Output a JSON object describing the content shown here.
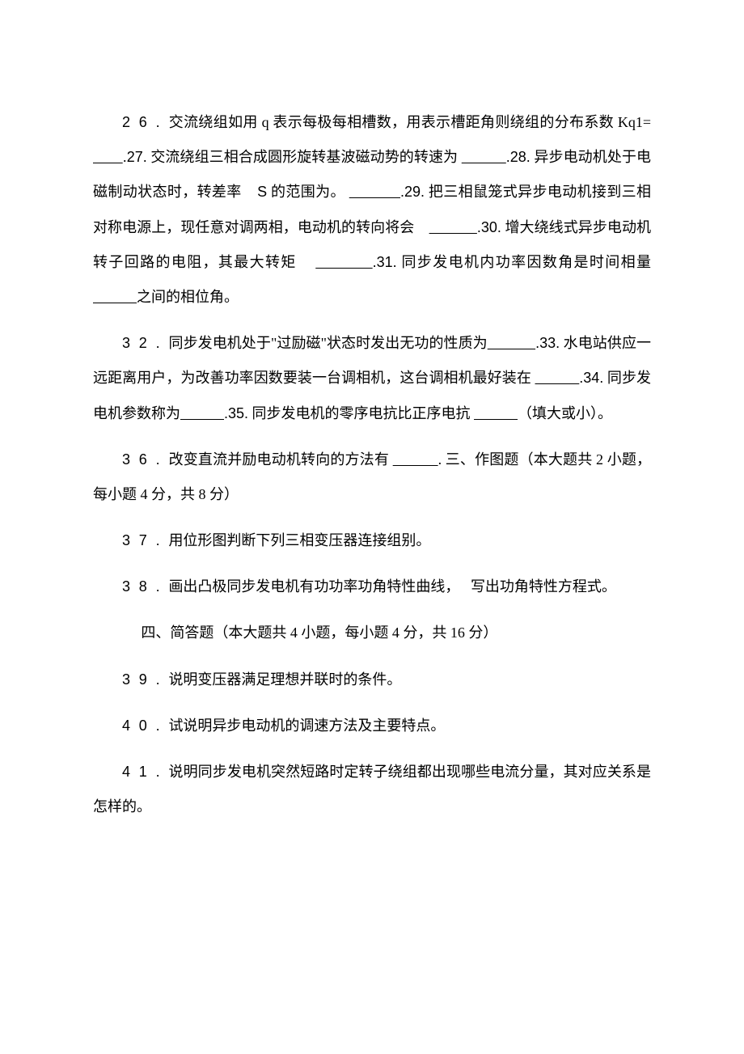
{
  "text_color": "#000000",
  "background_color": "#ffffff",
  "base_font_size_pt": 14,
  "line_height": 2.4,
  "paragraphs": {
    "p1": {
      "q26_num": "26.",
      "q26_text_a": "交流绕组如用 q 表示每极每相槽数，用表示槽距角则绕组的分布系数 Kq1=",
      "q27_num": ".27.",
      "q27_text": " 交流绕组三相合成圆形旋转基波磁动势的转速为 ",
      "q28_num": ".28.",
      "q28_text_a": " 异步电动机处于电磁制动状态时，转差率",
      "q28_s": "S",
      "q28_text_b": "的范围为。 ",
      "q29_num": ".29.",
      "q29_text": " 把三相鼠笼式异步电动机接到三相对称电源上，现任意对调两相，电动机的转向将会",
      "q30_num": ".30.",
      "q30_text": " 增大绕线式异步电动机转子回路的电阻，其最大转矩",
      "q31_num": ".31.",
      "q31_text": " 同步发电机内功率因数角是时间相量 ",
      "q31_end": "之间的相位角。"
    },
    "p2": {
      "q32_num": "32.",
      "q32_text": "同步发电机处于\"过励磁\"状态时发出无功的性质为",
      "q33_num": ".33.",
      "q33_text": " 水电站供应一远距离用户，为改善功率因数要装一台调相机，这台调相机最好装在 ",
      "q34_num": ".34.",
      "q34_text": " 同步发电机参数称为",
      "q35_num": ".35.",
      "q35_text": " 同步发电机的零序电抗比正序电抗 ",
      "q35_end": "（填大或小）。"
    },
    "p3": {
      "q36_num": "36.",
      "q36_text": "改变直流并励电动机转向的方法有 ",
      "q36_end": ". 三、作图题（本大题共 2 小题，每小题 4 分，共 8 分）"
    },
    "p4": {
      "q37_num": "37.",
      "q37_text": "用位形图判断下列三相变压器连接组别。"
    },
    "p5": {
      "q38_num": "38.",
      "q38_text_a": "画出凸极同步发电机有功功率功角特性曲线，",
      "q38_text_b": "写出功角特性方程式。"
    },
    "p6": {
      "section4": "四、简答题（本大题共 4 小题，每小题 4 分，共 16 分）"
    },
    "p7": {
      "q39_num": "39.",
      "q39_text": "说明变压器满足理想并联时的条件。"
    },
    "p8": {
      "q40_num": "40.",
      "q40_text": "试说明异步电动机的调速方法及主要特点。"
    },
    "p9": {
      "q41_num": "41.",
      "q41_text": "说明同步发电机突然短路时定转子绕组都出现哪些电流分量，其对应关系是怎样的。"
    }
  },
  "blanks": {
    "short": "        ",
    "medium": "            ",
    "long": "             "
  }
}
